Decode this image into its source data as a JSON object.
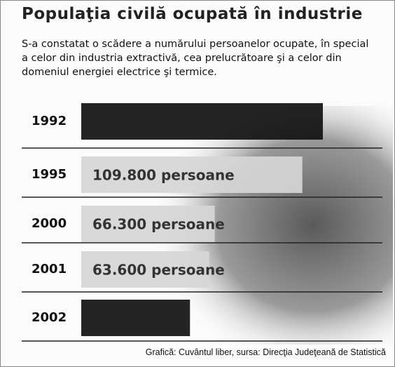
{
  "chart_data": {
    "type": "bar",
    "orientation": "horizontal",
    "title": "Populaţia civilă ocupată în industrie",
    "subtitle": "S-a constatat o scădere a numărului persoanelor ocupate, în special a celor din industria extractivă, cea prelucrătoare şi a celor din domeniul energiei electrice şi termice.",
    "source": "Grafică: Cuvântul liber, sursa: Direcţia Judeţeană de Statistică",
    "categories": [
      "1992",
      "1995",
      "2000",
      "2001",
      "2002"
    ],
    "values": [
      120000,
      109800,
      66300,
      63600,
      54000
    ],
    "value_labels": [
      null,
      "109.800 persoane",
      "66.300 persoane",
      "63.600 persoane",
      null
    ],
    "colors": [
      "#111111",
      "#d6d6d6",
      "#d6d6d6",
      "#d6d6d6",
      "#111111"
    ]
  }
}
